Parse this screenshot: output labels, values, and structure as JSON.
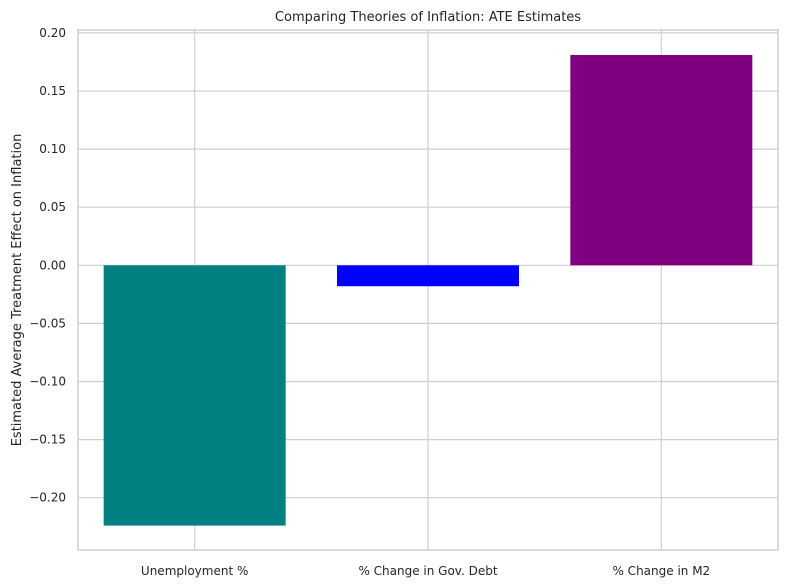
{
  "chart_data": {
    "type": "bar",
    "title": "Comparing Theories of Inflation: ATE Estimates",
    "xlabel": "",
    "ylabel": "Estimated Average Treatment Effect on Inflation",
    "categories": [
      "Unemployment %",
      "% Change in Gov. Debt",
      "% Change in M2"
    ],
    "values": [
      -0.224,
      -0.018,
      0.181
    ],
    "colors": [
      "#008080",
      "#0000ff",
      "#800080"
    ],
    "ylim": [
      -0.245,
      0.2025
    ],
    "yticks": [
      -0.2,
      -0.15,
      -0.1,
      -0.05,
      0.0,
      0.05,
      0.1,
      0.15,
      0.2
    ],
    "ytick_labels": [
      "−0.20",
      "−0.15",
      "−0.10",
      "−0.05",
      "0.00",
      "0.05",
      "0.10",
      "0.15",
      "0.20"
    ],
    "grid": true,
    "legend": "none"
  }
}
